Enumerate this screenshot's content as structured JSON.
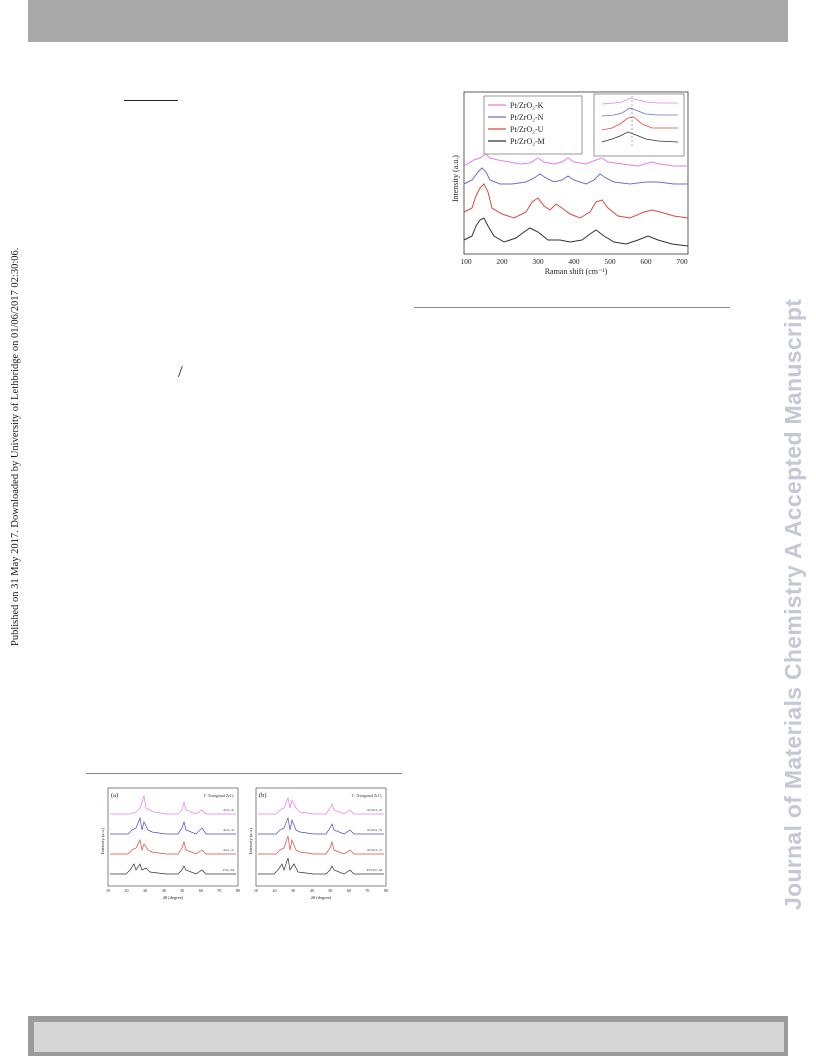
{
  "side_note": "Published on 31 May 2017. Downloaded by University of Lethbridge on 01/06/2017 02:30:06.",
  "watermark": "Journal of Materials Chemistry A Accepted Manuscript",
  "inline_symbol": "/",
  "raman_figure": {
    "legend": [
      "Pt/ZrO₂-K",
      "Pt/ZrO₂-N",
      "Pt/ZrO₂-U",
      "Pt/ZrO₂-M"
    ],
    "ylabel": "Intensity (a.u.)",
    "xlabel": "Raman shift (cm⁻¹)",
    "xticks": [
      "100",
      "200",
      "300",
      "400",
      "500",
      "600",
      "700"
    ],
    "series_colors": [
      "#e87de8",
      "#6f6fc8",
      "#d94a3c",
      "#333333"
    ]
  },
  "xrd_figure": {
    "panel_a_label": "(a)",
    "panel_b_label": "(b)",
    "legend": "T: Tetragonal ZrO₂",
    "ylabel": "Intensity (a.u.)",
    "xlabel": "2θ (degree)",
    "xticks": [
      "10",
      "20",
      "30",
      "40",
      "50",
      "60",
      "70",
      "80"
    ],
    "panel_a_series": [
      "ZrO₂-K",
      "ZrO₂-N",
      "ZrO₂-U",
      "ZrO₂-M"
    ],
    "panel_b_series": [
      "Pt/ZrO₂-K",
      "Pt/ZrO₂-N",
      "Pt/ZrO₂-U",
      "Pt/ZrO₂-M"
    ]
  }
}
